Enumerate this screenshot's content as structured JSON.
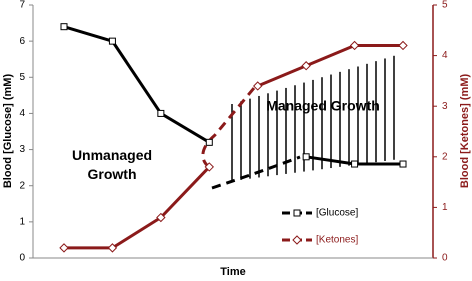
{
  "chart_data": {
    "type": "line",
    "categories": [
      null,
      null,
      null,
      null,
      null,
      null,
      null,
      null
    ],
    "x_label": "Time",
    "y_label": "Blood [Glucose] (mM)",
    "y2_label": "Blood [Ketones] (mM)",
    "ylim": [
      0,
      7
    ],
    "yticks": [
      0,
      1,
      2,
      3,
      4,
      5,
      6,
      7
    ],
    "y2lim": [
      0,
      5
    ],
    "y2ticks": [
      0,
      1,
      2,
      3,
      4,
      5
    ],
    "y2_color": "#8b1a1a",
    "annotations": [
      "Unmanaged Growth",
      "Managed Growth"
    ],
    "series": [
      {
        "name": "[Glucose]",
        "color": "#000000",
        "marker": "square",
        "values": [
          6.4,
          6.0,
          4.0,
          3.2,
          null,
          2.8,
          2.6,
          2.6
        ]
      },
      {
        "name": "[Ketones]",
        "color": "#8b1a1a",
        "marker": "diamond",
        "axis": "y2",
        "values": [
          0.2,
          0.2,
          0.8,
          1.8,
          3.4,
          3.8,
          4.2,
          4.2
        ]
      }
    ]
  }
}
